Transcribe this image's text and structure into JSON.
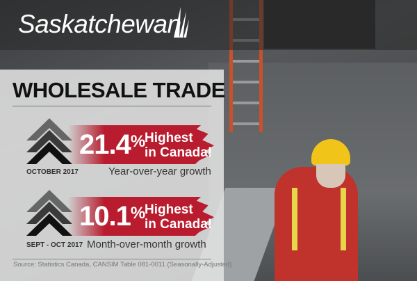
{
  "brand": {
    "name": "Saskatchewan"
  },
  "infographic": {
    "title": "WHOLESALE TRADE",
    "stats": [
      {
        "value": "21.4",
        "unit": "%",
        "highlight_line1": "Highest",
        "highlight_line2": "in Canada!",
        "period": "OCTOBER 2017",
        "description": "Year-over-year growth"
      },
      {
        "value": "10.1",
        "unit": "%",
        "highlight_line1": "Highest",
        "highlight_line2": "in Canada!",
        "period": "SEPT - OCT 2017",
        "description": "Month-over-month growth"
      }
    ],
    "source": "Source: Statistics Canada, CANSIM Table 081-0011 (Seasonally-Adjusted)"
  },
  "colors": {
    "banner_red": "#b81c2e",
    "helmet_yellow": "#f0c419",
    "coverall_red": "#c0322c"
  }
}
